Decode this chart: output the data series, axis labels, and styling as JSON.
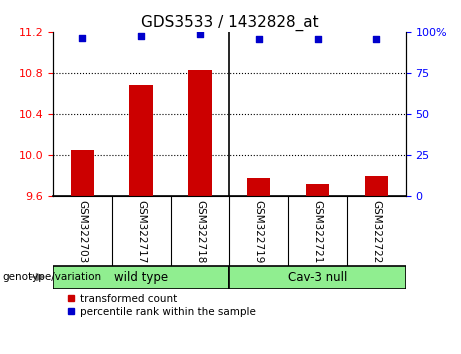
{
  "title": "GDS3533 / 1432828_at",
  "samples": [
    "GSM322703",
    "GSM322717",
    "GSM322718",
    "GSM322719",
    "GSM322721",
    "GSM322722"
  ],
  "bar_values": [
    10.05,
    10.68,
    10.83,
    9.78,
    9.72,
    9.8
  ],
  "percentile_values": [
    96.5,
    97.5,
    98.5,
    95.5,
    95.5,
    95.5
  ],
  "ylim_left": [
    9.6,
    11.2
  ],
  "ylim_right": [
    0,
    100
  ],
  "yticks_left": [
    9.6,
    10.0,
    10.4,
    10.8,
    11.2
  ],
  "yticks_right": [
    0,
    25,
    50,
    75,
    100
  ],
  "bar_color": "#cc0000",
  "dot_color": "#0000cc",
  "groups": [
    "wild type",
    "Cav-3 null"
  ],
  "group_split": 3,
  "group_label": "genotype/variation",
  "legend_red_label": "transformed count",
  "legend_blue_label": "percentile rank within the sample",
  "tick_area_color": "#c8c8c8",
  "group_color": "#90ee90",
  "plot_bg_color": "#ffffff",
  "title_fontsize": 11,
  "tick_label_fontsize": 7.5,
  "bar_width": 0.4
}
